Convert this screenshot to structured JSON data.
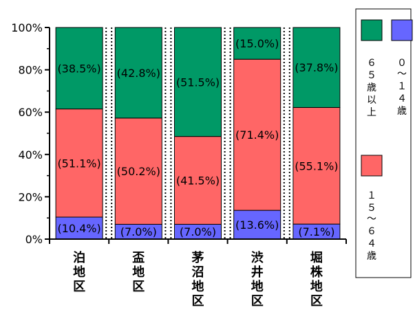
{
  "chart_data": {
    "type": "bar",
    "stacked": true,
    "percent": true,
    "categories": [
      "泊地区",
      "盃地区",
      "茅沼地区",
      "渋井地区",
      "堀株地区"
    ],
    "series": [
      {
        "name": "０～１４歳",
        "color": "#6666ff",
        "values": [
          10.4,
          7.0,
          7.0,
          13.6,
          7.1
        ],
        "labels": [
          "(10.4%)",
          "(7.0%)",
          "(7.0%)",
          "(13.6%)",
          "(7.1%)"
        ]
      },
      {
        "name": "１５～６４歳",
        "color": "#ff6666",
        "values": [
          51.1,
          50.2,
          41.5,
          71.4,
          55.1
        ],
        "labels": [
          "(51.1%)",
          "(50.2%)",
          "(41.5%)",
          "(71.4%)",
          "(55.1%)"
        ]
      },
      {
        "name": "６５歳以上",
        "color": "#009966",
        "values": [
          38.5,
          42.8,
          51.5,
          15.0,
          37.8
        ],
        "labels": [
          "(38.5%)",
          "(42.8%)",
          "(51.5%)",
          "(15.0%)",
          "(37.8%)"
        ]
      }
    ],
    "ylim": [
      0,
      100
    ],
    "yticks": [
      "0%",
      "20%",
      "40%",
      "60%",
      "80%",
      "100%"
    ],
    "ytick_values": [
      0,
      20,
      40,
      60,
      80,
      100
    ],
    "legend_placement": "right",
    "grid": false
  }
}
